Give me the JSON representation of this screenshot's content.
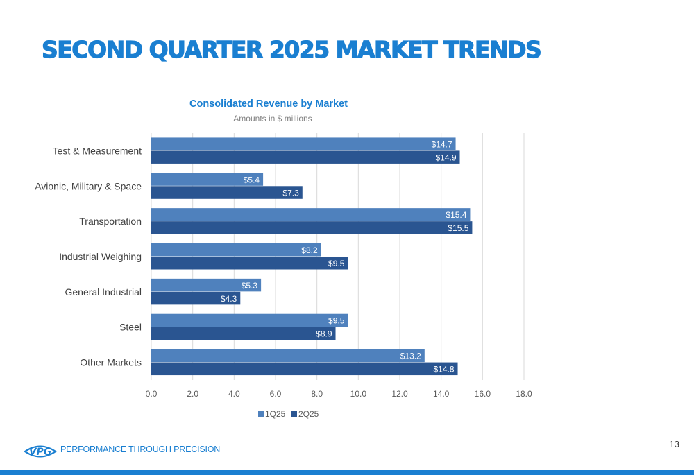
{
  "slide": {
    "title": "SECOND QUARTER 2025 MARKET TRENDS",
    "page_number": "13",
    "tagline": "PERFORMANCE THROUGH PRECISION",
    "logo_text": "VPG",
    "accent_color": "#1a7fd1"
  },
  "chart_data": {
    "type": "bar",
    "orientation": "horizontal",
    "title": "Consolidated Revenue by Market",
    "subtitle": "Amounts in $ millions",
    "categories": [
      "Test & Measurement",
      "Avionic, Military & Space",
      "Transportation",
      "Industrial Weighing",
      "General Industrial",
      "Steel",
      "Other Markets"
    ],
    "series": [
      {
        "name": "1Q25",
        "color": "#4f81bd",
        "values": [
          14.7,
          5.4,
          15.4,
          8.2,
          5.3,
          9.5,
          13.2
        ],
        "labels": [
          "$14.7",
          "$5.4",
          "$15.4",
          "$8.2",
          "$5.3",
          "$9.5",
          "$13.2"
        ]
      },
      {
        "name": "2Q25",
        "color": "#2a5591",
        "values": [
          14.9,
          7.3,
          15.5,
          9.5,
          4.3,
          8.9,
          14.8
        ],
        "labels": [
          "$14.9",
          "$7.3",
          "$15.5",
          "$9.5",
          "$4.3",
          "$8.9",
          "$14.8"
        ]
      }
    ],
    "xlim": [
      0,
      18
    ],
    "x_ticks": [
      "0.0",
      "2.0",
      "4.0",
      "6.0",
      "8.0",
      "10.0",
      "12.0",
      "14.0",
      "16.0",
      "18.0"
    ],
    "grid": true,
    "legend": "bottom"
  }
}
